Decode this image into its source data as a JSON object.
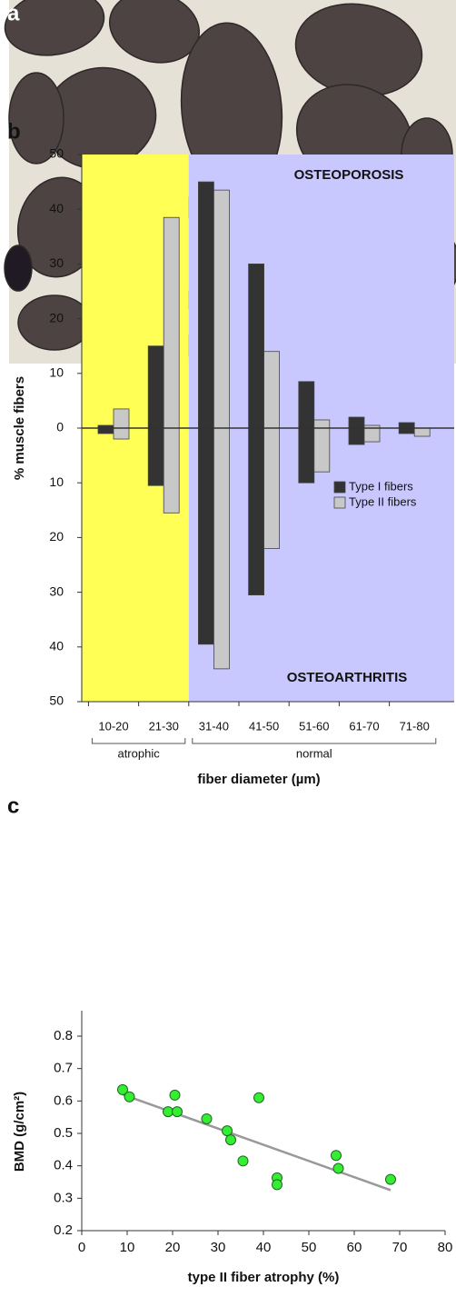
{
  "image": {
    "label": "a"
  },
  "chart_data": [
    {
      "type": "bar",
      "label": "b",
      "categories": [
        "10-20",
        "21-30",
        "31-40",
        "41-50",
        "51-60",
        "61-70",
        "71-80"
      ],
      "groups": [
        {
          "label": "atrophic",
          "from": 0,
          "to": 1
        },
        {
          "label": "normal",
          "from": 2,
          "to": 6
        }
      ],
      "series": [
        {
          "name": "Type I fibers",
          "color": "#333333",
          "values": [
            0.5,
            15,
            45,
            30,
            8.5,
            2,
            1
          ],
          "values_osteoarthritis": [
            -1,
            -10.5,
            -39.5,
            -30.5,
            -10,
            -3,
            -1
          ]
        },
        {
          "name": "Type II fibers",
          "color": "#c8c8c8",
          "values": [
            3.5,
            38.5,
            43.5,
            14,
            1.5,
            0.5,
            0
          ],
          "values_osteoarthritis": [
            -2,
            -15.5,
            -44,
            -22,
            -8,
            -2.5,
            -1.5
          ]
        }
      ],
      "annotations": [
        "OSTEOPOROSIS",
        "OSTEOARTHRITIS"
      ],
      "ylabel": "% muscle fibers",
      "xlabel": "fiber diameter (µm)",
      "ylim": [
        -50,
        50
      ],
      "yticks": [
        {
          "value": -50,
          "label": "50"
        },
        {
          "value": -40,
          "label": "40"
        },
        {
          "value": -30,
          "label": "30"
        },
        {
          "value": -20,
          "label": "20"
        },
        {
          "value": -10,
          "label": "10"
        },
        0,
        10,
        20,
        30,
        40,
        50
      ],
      "grid": false
    },
    {
      "type": "scatter",
      "label": "c",
      "x": [
        9,
        10.5,
        19,
        20.5,
        21,
        27.5,
        32,
        32.8,
        35.5,
        39,
        43,
        43,
        56,
        56.5,
        68
      ],
      "y": [
        0.635,
        0.613,
        0.567,
        0.618,
        0.567,
        0.545,
        0.508,
        0.48,
        0.415,
        0.61,
        0.363,
        0.342,
        0.432,
        0.392,
        0.358
      ],
      "color": "#33ee33",
      "trendline": {
        "x": [
          9,
          68
        ],
        "y": [
          0.62,
          0.325
        ],
        "color": "#999999"
      },
      "xlabel": "type II fiber atrophy (%)",
      "ylabel": "BMD (g/cm²)",
      "xlim": [
        0,
        80
      ],
      "ylim": [
        0.2,
        0.8
      ],
      "xticks": [
        0,
        10,
        20,
        30,
        40,
        50,
        60,
        70,
        80
      ],
      "yticks": [
        0.2,
        0.3,
        0.4,
        0.5,
        0.6,
        0.7,
        0.8
      ],
      "grid": false
    }
  ]
}
